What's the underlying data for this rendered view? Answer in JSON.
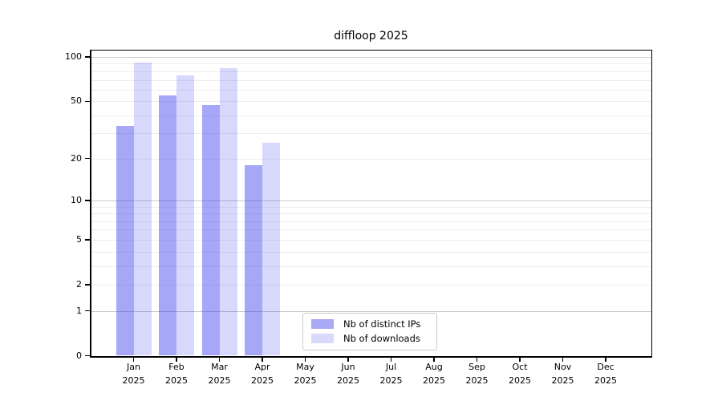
{
  "page": {
    "background": "#ffffff"
  },
  "chart_data": {
    "type": "bar",
    "title": "diffloop 2025",
    "xlabel": "",
    "ylabel": "",
    "x": {
      "categories": [
        "Jan",
        "Feb",
        "Mar",
        "Apr",
        "May",
        "Jun",
        "Jul",
        "Aug",
        "Sep",
        "Oct",
        "Nov",
        "Dec"
      ],
      "sub_label": "2025"
    },
    "y_axis": {
      "scale": "log1p",
      "min": 0,
      "max": 112,
      "ticks": [
        0,
        1,
        2,
        5,
        10,
        20,
        50,
        100
      ],
      "major_gridlines": [
        1,
        10,
        100
      ],
      "minor_gridlines": [
        2,
        3,
        4,
        5,
        6,
        7,
        8,
        9,
        20,
        30,
        40,
        50,
        60,
        70,
        80,
        90
      ]
    },
    "series": [
      {
        "name": "Nb of distinct IPs",
        "color": "#a9a9f6",
        "fill": "rgba(60,60,240,0.45)",
        "values": [
          34,
          55,
          47,
          18,
          0,
          0,
          0,
          0,
          0,
          0,
          0,
          0
        ]
      },
      {
        "name": "Nb of downloads",
        "color": "#d9d9fb",
        "fill": "rgba(60,60,240,0.20)",
        "values": [
          92,
          75,
          84,
          26,
          0,
          0,
          0,
          0,
          0,
          0,
          0,
          0
        ]
      }
    ],
    "legend": {
      "position": "bottom-center"
    },
    "grid": true,
    "colors": {
      "major_grid": "#c9c9c9",
      "minor_grid": "#ededed",
      "spine": "#000000",
      "text": "#000000",
      "legend_border": "#cbcbcb"
    }
  }
}
